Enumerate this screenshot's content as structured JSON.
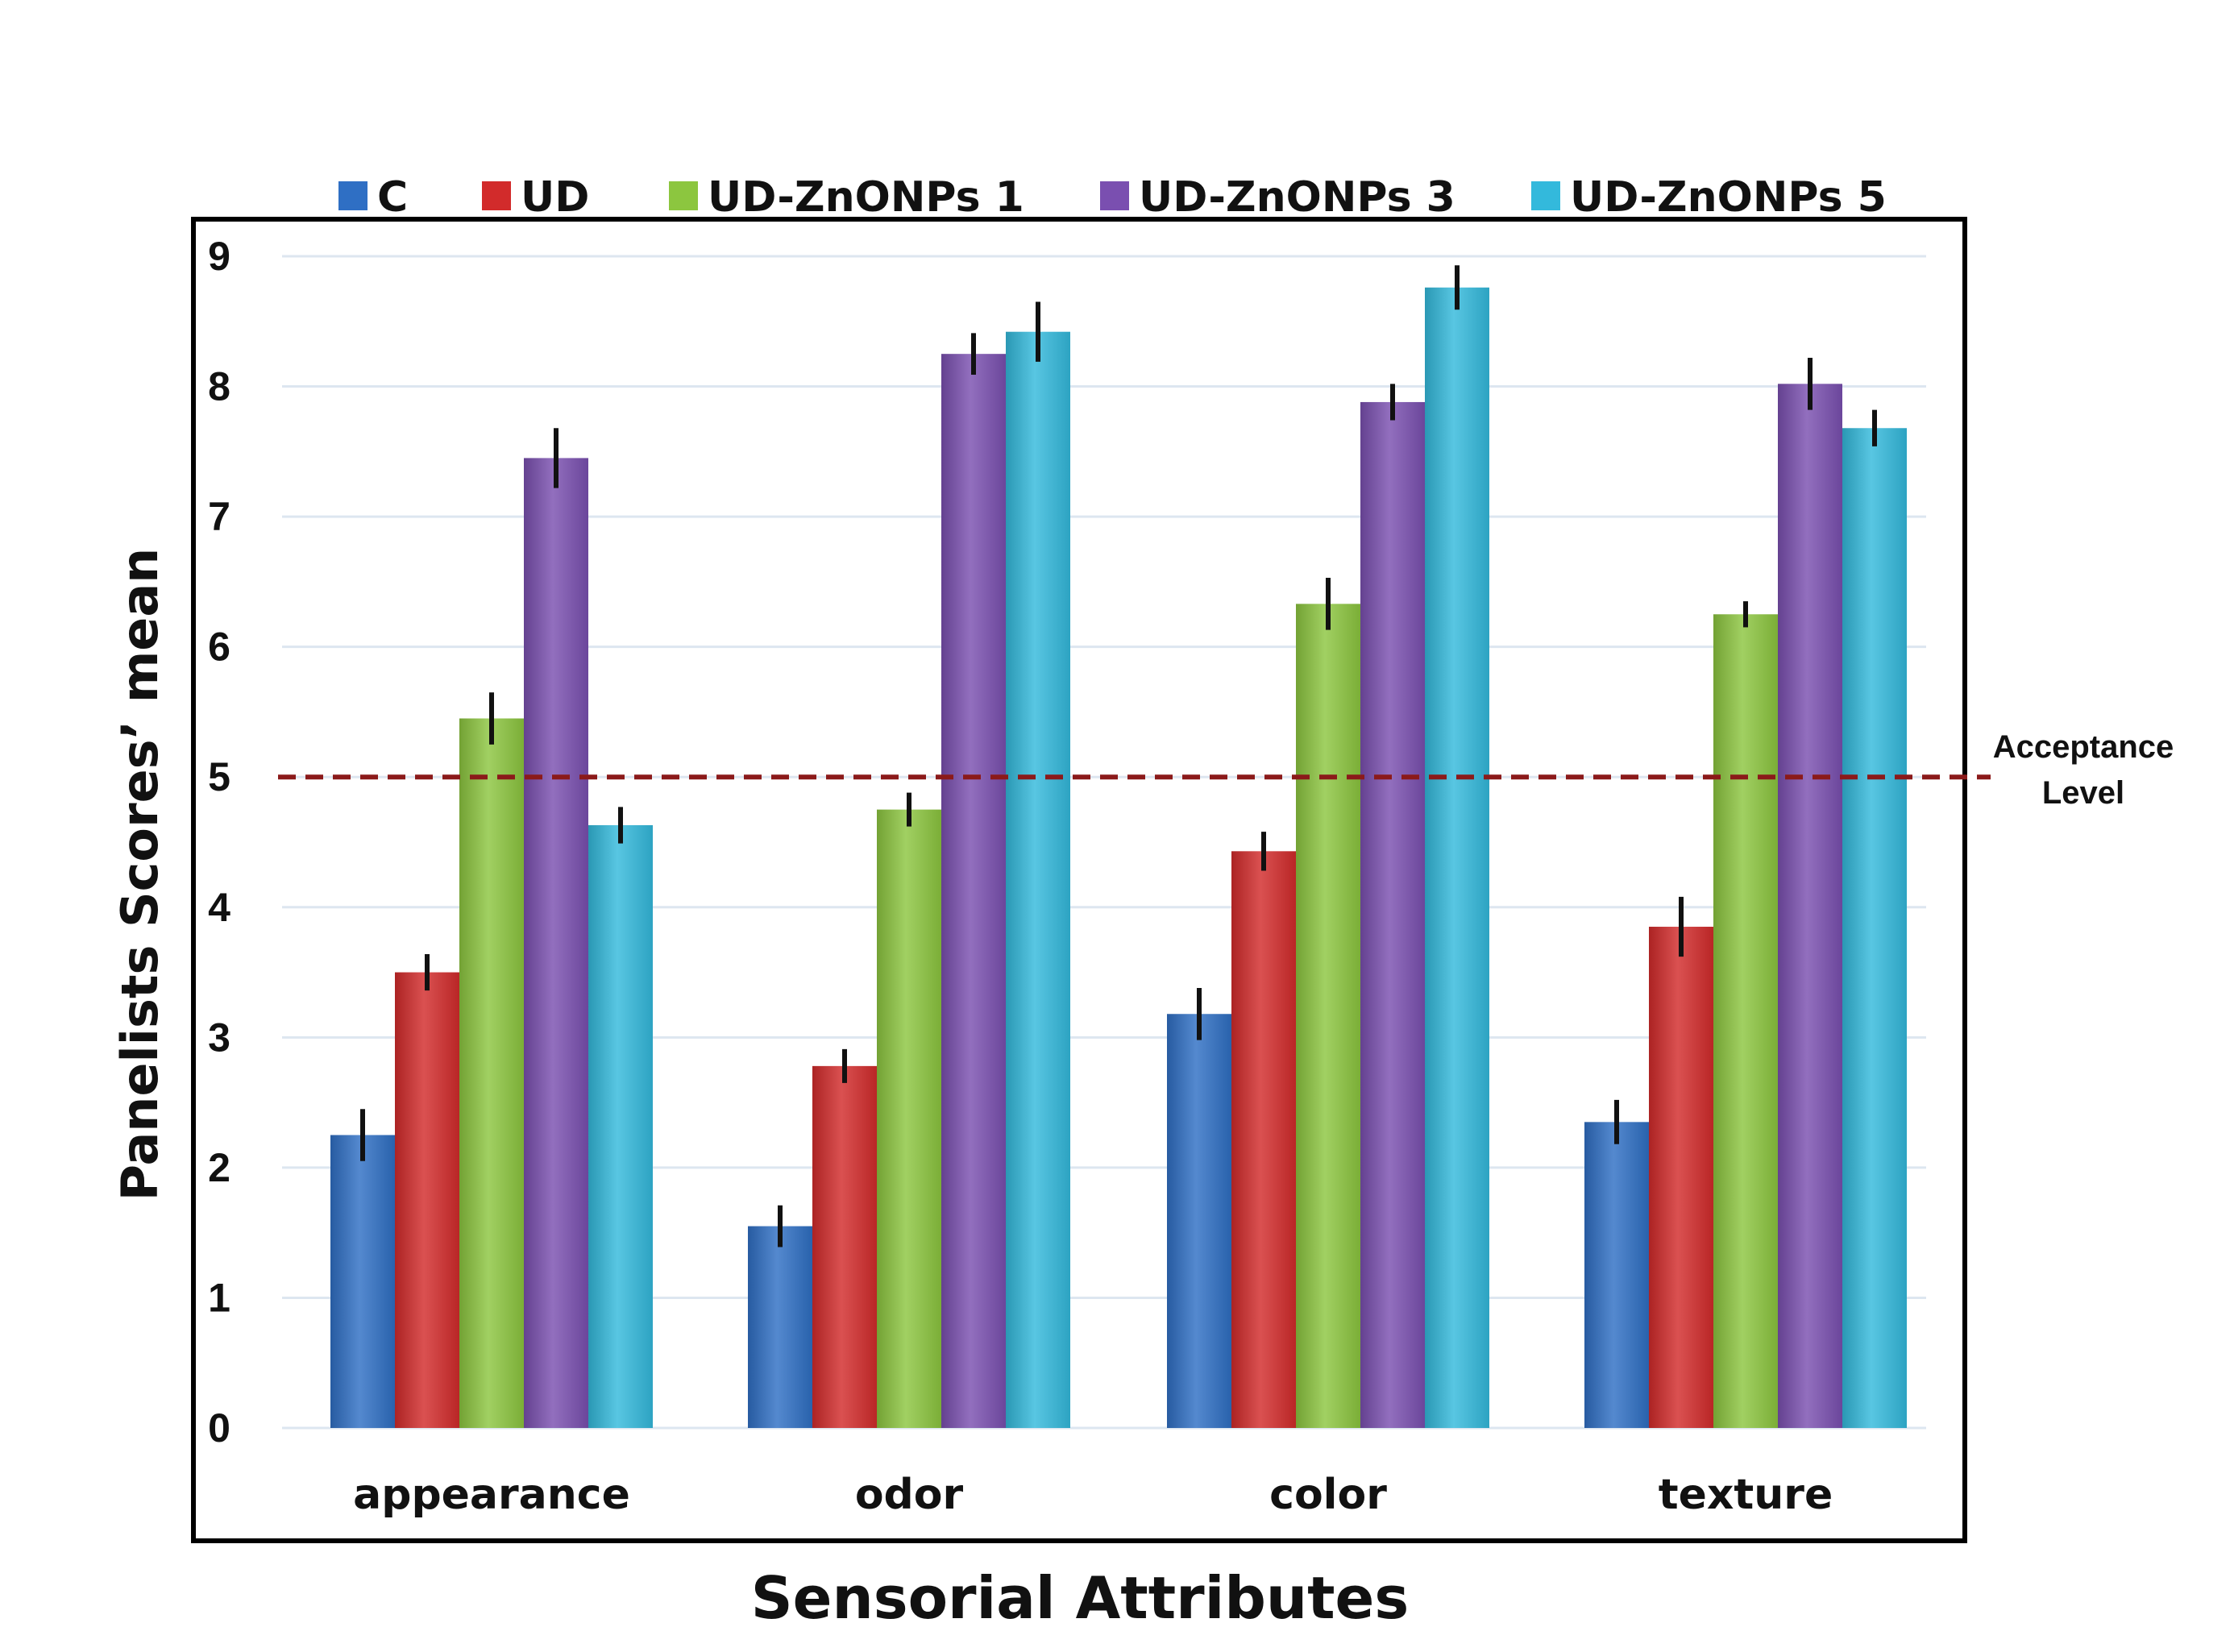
{
  "chart_data": {
    "type": "bar",
    "title": "",
    "xlabel": "Sensorial Attributes",
    "ylabel": "Panelists Scores’ mean",
    "ylim": [
      0,
      9
    ],
    "yticks": [
      0,
      1,
      2,
      3,
      4,
      5,
      6,
      7,
      8,
      9
    ],
    "grid": true,
    "legend_position": "top",
    "categories": [
      "appearance",
      "odor",
      "color",
      "texture"
    ],
    "series": [
      {
        "name": "C",
        "color": "#2f6fc4",
        "values": [
          2.25,
          1.55,
          3.18,
          2.35
        ],
        "errors": [
          0.2,
          0.16,
          0.2,
          0.17
        ]
      },
      {
        "name": "UD",
        "color": "#d22b2b",
        "values": [
          3.5,
          2.78,
          4.43,
          3.85
        ],
        "errors": [
          0.14,
          0.13,
          0.15,
          0.23
        ]
      },
      {
        "name": "UD-ZnONPs  1",
        "color": "#8cc63f",
        "values": [
          5.45,
          4.75,
          6.33,
          6.25
        ],
        "errors": [
          0.2,
          0.13,
          0.2,
          0.1
        ]
      },
      {
        "name": "UD-ZnONPs 3",
        "color": "#7a4fb0",
        "values": [
          7.45,
          8.25,
          7.88,
          8.02
        ],
        "errors": [
          0.23,
          0.16,
          0.14,
          0.2
        ]
      },
      {
        "name": "UD-ZnONPs 5",
        "color": "#33b9dc",
        "values": [
          4.63,
          8.42,
          8.76,
          7.68
        ],
        "errors": [
          0.14,
          0.23,
          0.17,
          0.14
        ]
      }
    ],
    "reference_line": {
      "value": 5,
      "label_line1": "Acceptance",
      "label_line2": "Level",
      "color": "#8b1a1a"
    }
  }
}
